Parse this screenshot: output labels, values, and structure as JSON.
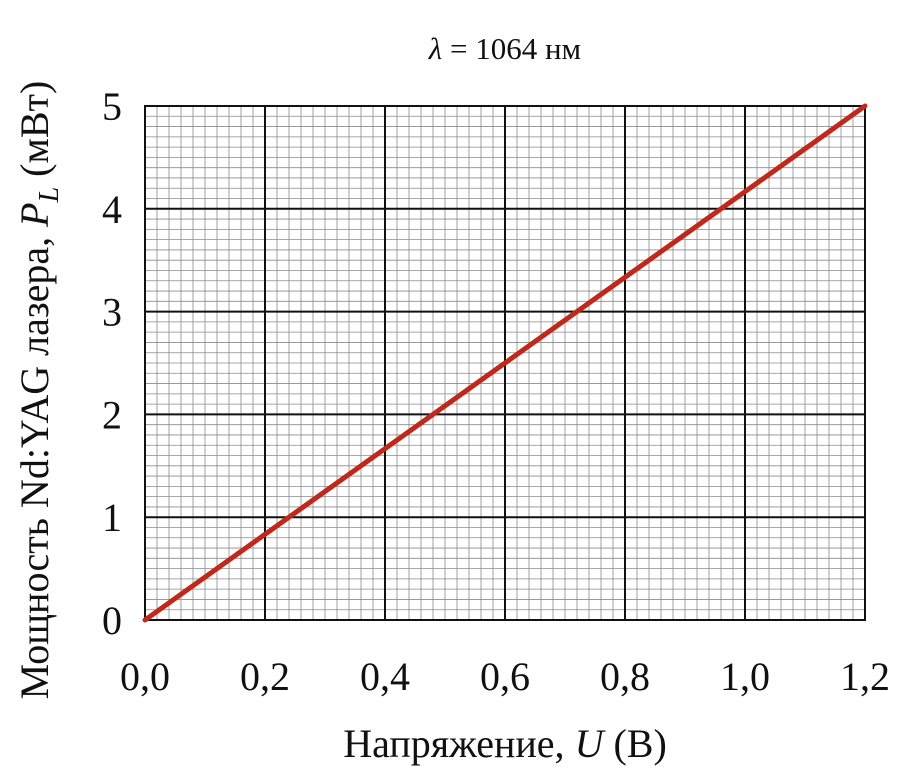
{
  "chart_data": {
    "type": "line",
    "title_symbol": "λ",
    "title_rest": " = 1064 нм",
    "xlabel_text": "Напряжение, ",
    "xlabel_var": "U",
    "xlabel_unit": " (В)",
    "ylabel_text": "Мощность Nd:YAG лазера, ",
    "ylabel_var": "P",
    "ylabel_sub": "L",
    "ylabel_unit": " (мВт)",
    "xlim": [
      0,
      1.2
    ],
    "ylim": [
      0,
      5
    ],
    "x_ticks": [
      "0,0",
      "0,2",
      "0,4",
      "0,6",
      "0,8",
      "1,0",
      "1,2"
    ],
    "y_ticks": [
      "0",
      "1",
      "2",
      "3",
      "4",
      "5"
    ],
    "grid": true,
    "minor_grid": true,
    "series": [
      {
        "x": [
          0,
          1.2
        ],
        "y": [
          0,
          5
        ],
        "color": "#c0281c"
      }
    ]
  }
}
